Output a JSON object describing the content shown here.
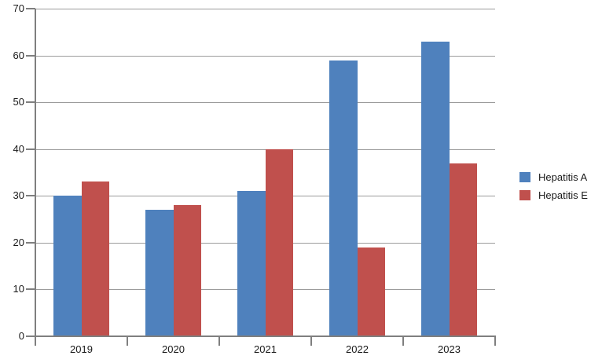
{
  "chart_data": {
    "type": "bar",
    "title": "",
    "xlabel": "",
    "ylabel": "",
    "categories": [
      "2019",
      "2020",
      "2021",
      "2022",
      "2023"
    ],
    "series": [
      {
        "name": "Hepatitis A",
        "color": "#4F81BD",
        "values": [
          30,
          27,
          31,
          59,
          63
        ]
      },
      {
        "name": "Hepatitis E",
        "color": "#C0504D",
        "values": [
          33,
          28,
          40,
          19,
          37
        ]
      }
    ],
    "ylim": [
      0,
      70
    ],
    "ytick_step": 10,
    "grid": "horizontal",
    "legend_position": "right",
    "colors": {
      "background": "#ffffff",
      "gridline": "#9b9b9b",
      "axis": "#7f7f7f",
      "text": "#1a1a1a"
    }
  }
}
